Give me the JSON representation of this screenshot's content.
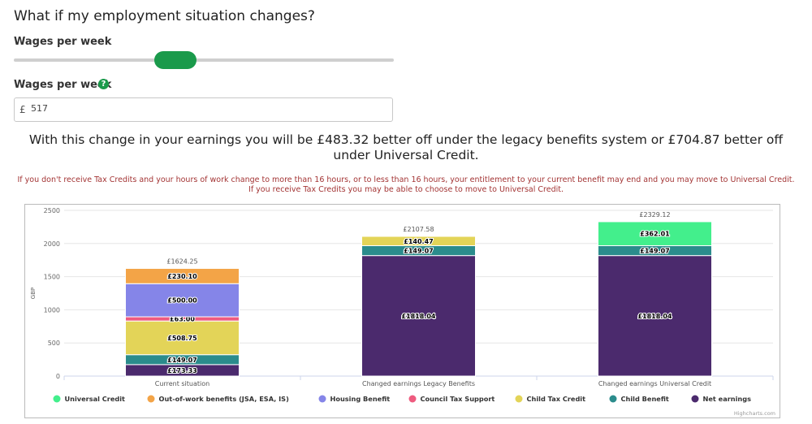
{
  "heading": "What if my employment situation changes?",
  "slider": {
    "label": "Wages per week"
  },
  "wages_field": {
    "label": "Wages per week",
    "currency": "£",
    "value": "517"
  },
  "result_text": "With this change in your earnings you will be £483.32 better off under the legacy benefits system or £704.87 better off under Universal Credit.",
  "warning_text": "If you don't receive Tax Credits and your hours of work change to more than 16 hours, or to less than 16 hours, your entitlement to your current benefit may end and you may move to Universal Credit. If you receive Tax Credits you may be able to choose to move to Universal Credit.",
  "credits": "Highcharts.com",
  "chart_data": {
    "type": "bar",
    "stacked": true,
    "ylabel": "GBP",
    "ylim": [
      0,
      2500
    ],
    "yticks": [
      0,
      500,
      1000,
      1500,
      2000,
      2500
    ],
    "grid": true,
    "legend_position": "bottom",
    "categories": [
      "Current situation",
      "Changed earnings Legacy Benefits",
      "Changed earnings Universal Credit"
    ],
    "totals": [
      "£1624.25",
      "£2107.58",
      "£2329.12"
    ],
    "series": [
      {
        "name": "Net earnings",
        "color": "#4b2a6d",
        "values": [
          173.33,
          1818.04,
          1818.04
        ],
        "labels": [
          "£173.33",
          "£1818.04",
          "£1818.04"
        ]
      },
      {
        "name": "Child Benefit",
        "color": "#2b8c8c",
        "values": [
          149.07,
          149.07,
          149.07
        ],
        "labels": [
          "£149.07",
          "£149.07",
          "£149.07"
        ]
      },
      {
        "name": "Child Tax Credit",
        "color": "#e3d458",
        "values": [
          508.75,
          140.47,
          0
        ],
        "labels": [
          "£508.75",
          "£140.47",
          ""
        ]
      },
      {
        "name": "Council Tax Support",
        "color": "#ee5b7f",
        "values": [
          63.0,
          0,
          0
        ],
        "labels": [
          "£63.00",
          "",
          ""
        ]
      },
      {
        "name": "Housing Benefit",
        "color": "#8585e8",
        "values": [
          500.0,
          0,
          0
        ],
        "labels": [
          "£500.00",
          "",
          ""
        ]
      },
      {
        "name": "Out-of-work benefits (JSA, ESA, IS)",
        "color": "#f3a447",
        "values": [
          230.1,
          0,
          0
        ],
        "labels": [
          "£230.10",
          "",
          ""
        ]
      },
      {
        "name": "Universal Credit",
        "color": "#43ef8c",
        "values": [
          0,
          0,
          362.01
        ],
        "labels": [
          "",
          "",
          "£362.01"
        ]
      }
    ],
    "legend_order": [
      "Universal Credit",
      "Out-of-work benefits (JSA, ESA, IS)",
      "Housing Benefit",
      "Council Tax Support",
      "Child Tax Credit",
      "Child Benefit",
      "Net earnings"
    ]
  }
}
